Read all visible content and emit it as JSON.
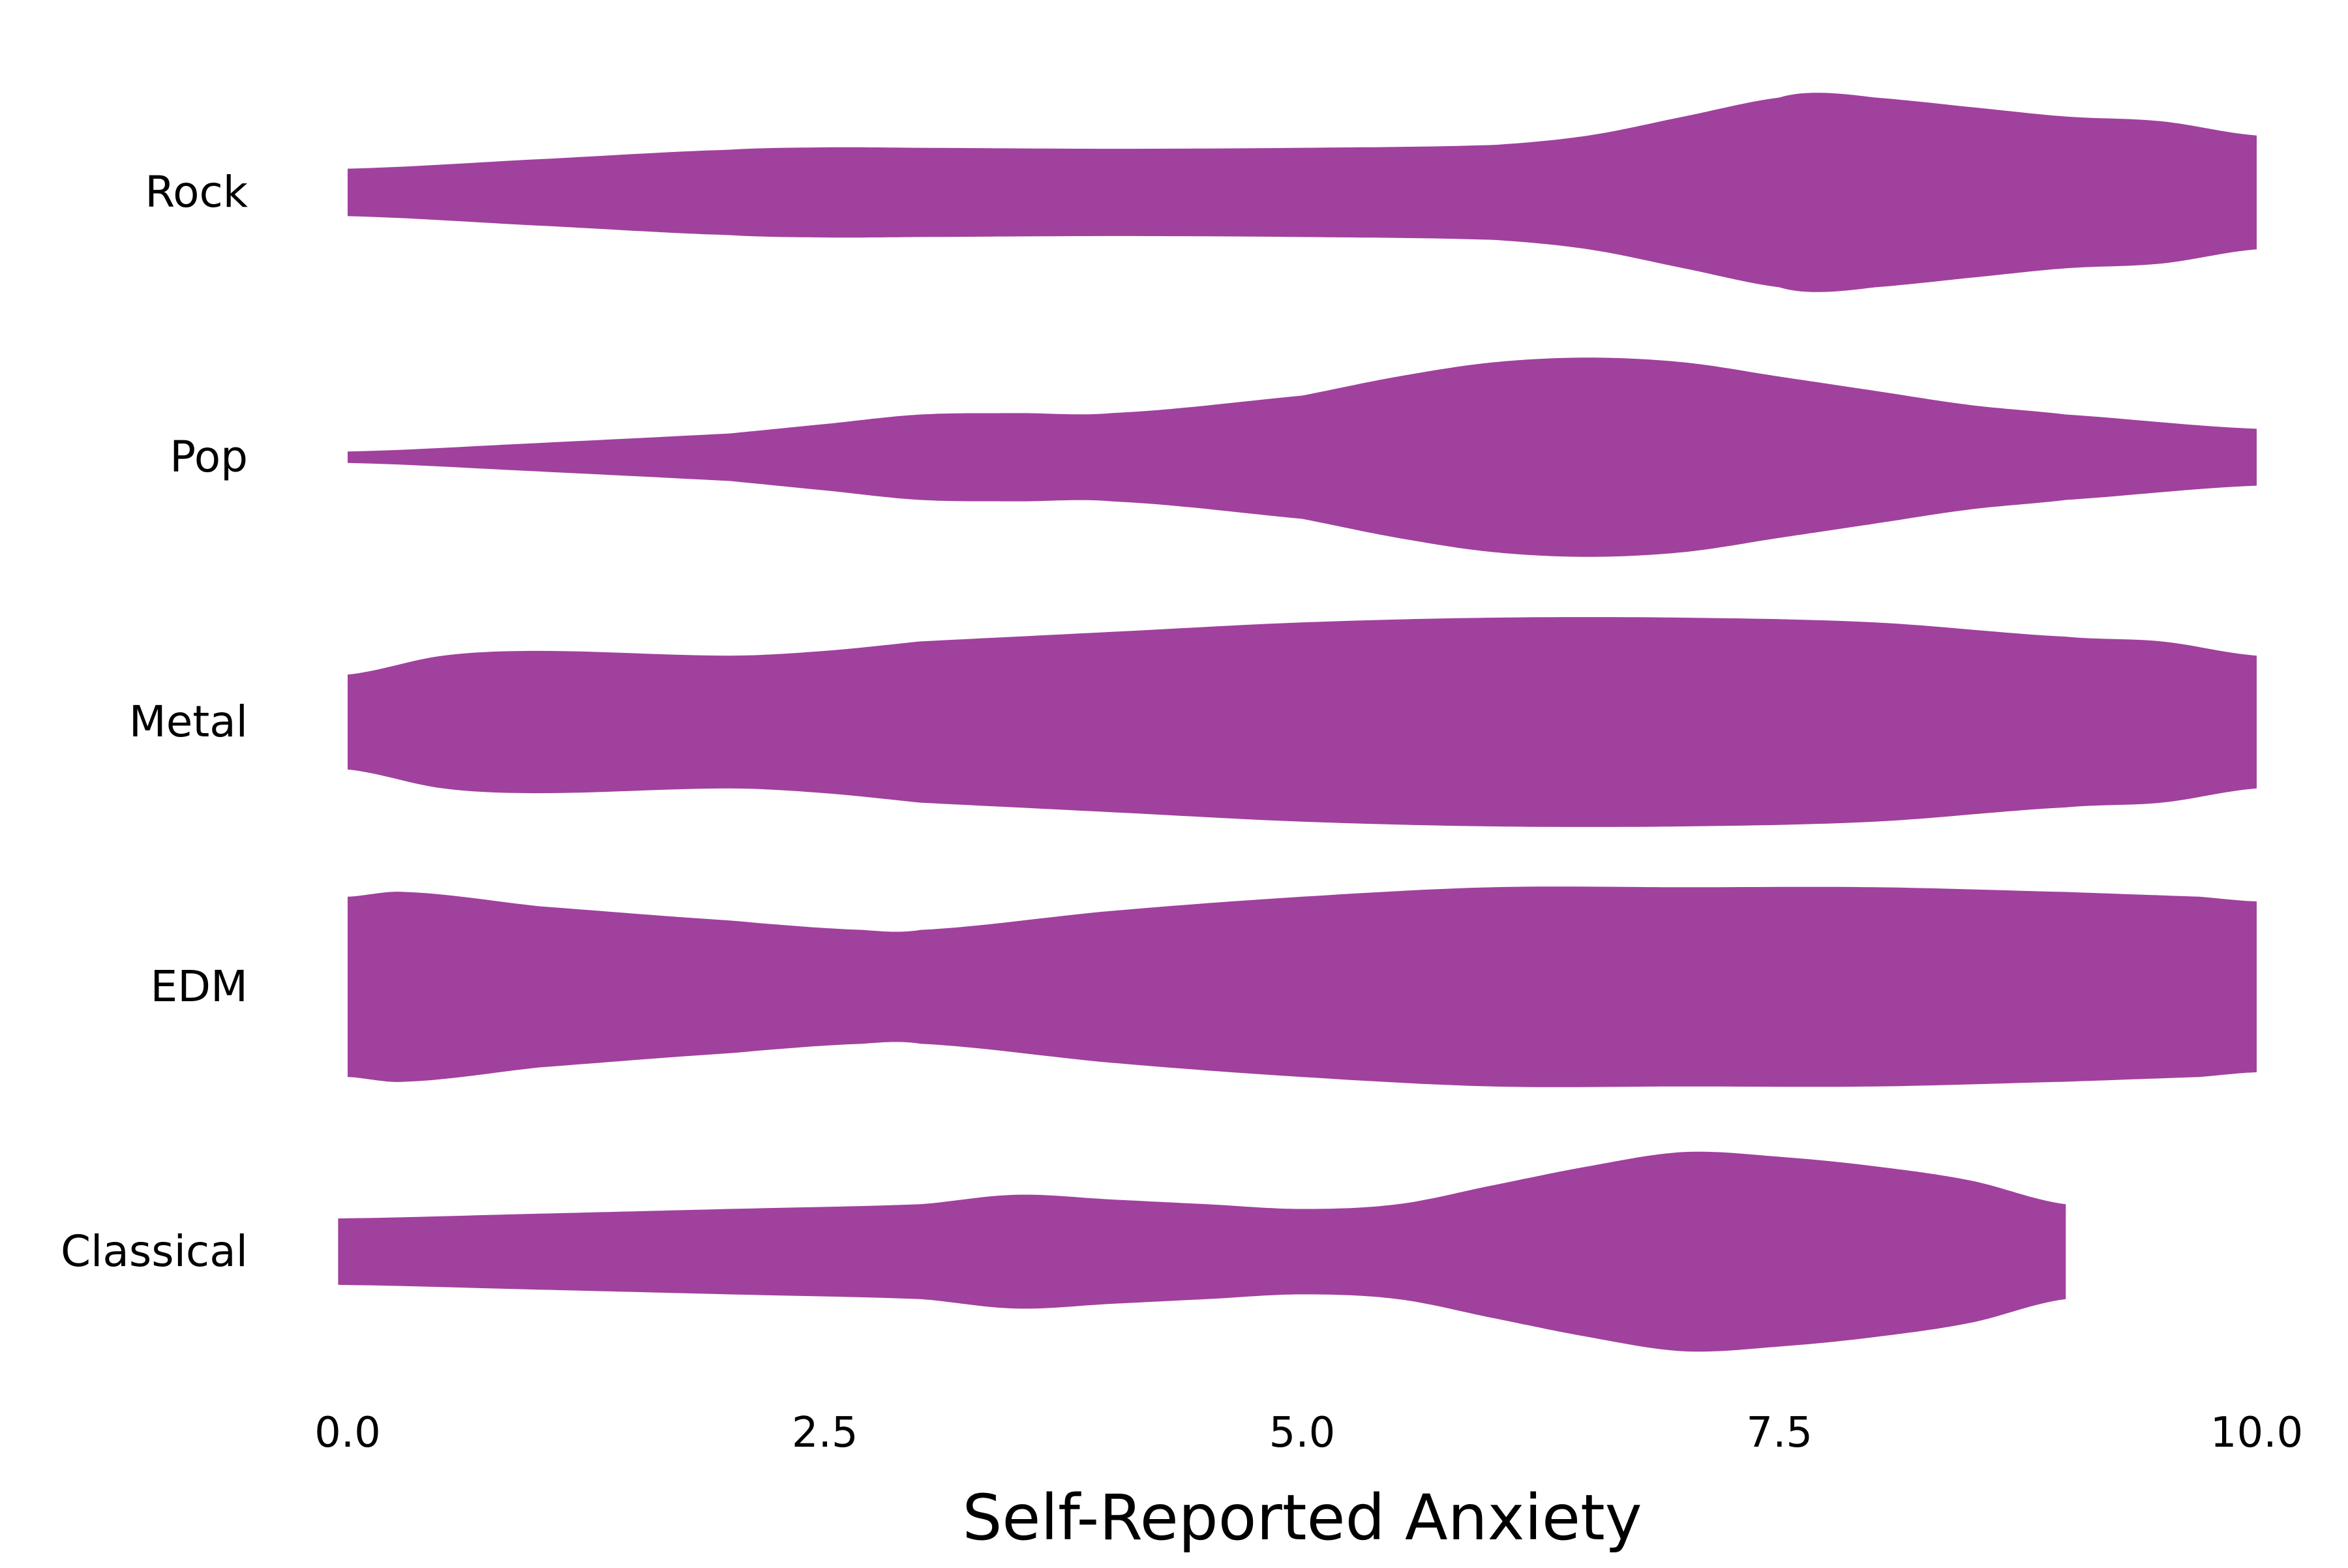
{
  "chart_data": {
    "type": "violin",
    "orientation": "horizontal",
    "xlabel": "Self-Reported Anxiety",
    "ylabel": "",
    "title": "",
    "xlim": [
      0,
      10
    ],
    "x_ticks": [
      "0.0",
      "2.5",
      "5.0",
      "7.5",
      "10.0"
    ],
    "x_tick_values": [
      0,
      2.5,
      5.0,
      7.5,
      10.0
    ],
    "grid": false,
    "legend": "none",
    "color": "#a0419e",
    "categories": [
      "Rock",
      "Pop",
      "Metal",
      "EDM",
      "Classical"
    ],
    "series": [
      {
        "category": "Rock",
        "range": [
          0,
          10
        ],
        "profile_x": [
          0,
          1,
          2,
          2.5,
          3,
          4,
          5,
          6,
          6.5,
          7,
          7.5,
          7.7,
          8,
          8.5,
          9,
          9.5,
          10
        ],
        "density": [
          0.05,
          0.07,
          0.09,
          0.095,
          0.094,
          0.092,
          0.094,
          0.1,
          0.12,
          0.16,
          0.2,
          0.21,
          0.2,
          0.18,
          0.16,
          0.15,
          0.12
        ]
      },
      {
        "category": "Pop",
        "range": [
          0,
          10
        ],
        "profile_x": [
          0,
          1,
          2,
          2.5,
          3,
          3.5,
          4,
          5,
          5.5,
          6,
          6.5,
          7,
          7.5,
          8,
          8.5,
          9,
          10
        ],
        "density": [
          0.012,
          0.03,
          0.05,
          0.07,
          0.09,
          0.093,
          0.093,
          0.13,
          0.17,
          0.2,
          0.21,
          0.2,
          0.17,
          0.14,
          0.11,
          0.09,
          0.06
        ]
      },
      {
        "category": "Metal",
        "range": [
          0,
          10
        ],
        "profile_x": [
          0,
          0.5,
          1,
          2,
          2.5,
          3,
          4,
          5,
          6,
          7,
          8,
          9,
          9.5,
          10
        ],
        "density": [
          0.1,
          0.14,
          0.15,
          0.14,
          0.15,
          0.17,
          0.19,
          0.21,
          0.22,
          0.22,
          0.21,
          0.18,
          0.17,
          0.14
        ]
      },
      {
        "category": "EDM",
        "range": [
          0,
          10
        ],
        "profile_x": [
          0,
          0.3,
          1,
          2,
          2.7,
          3,
          4,
          5,
          6,
          7,
          8,
          9,
          9.7,
          10
        ],
        "density": [
          0.19,
          0.2,
          0.17,
          0.14,
          0.12,
          0.12,
          0.16,
          0.19,
          0.21,
          0.21,
          0.21,
          0.2,
          0.19,
          0.18
        ]
      },
      {
        "category": "Classical",
        "range": [
          -0.05,
          9.0
        ],
        "profile_x": [
          -0.05,
          1,
          2,
          3,
          3.5,
          4,
          4.5,
          5,
          5.5,
          6,
          6.5,
          7,
          7.5,
          8,
          8.5,
          9.0
        ],
        "density": [
          0.07,
          0.08,
          0.09,
          0.1,
          0.12,
          0.11,
          0.1,
          0.09,
          0.1,
          0.14,
          0.18,
          0.21,
          0.2,
          0.18,
          0.15,
          0.1
        ]
      }
    ]
  }
}
